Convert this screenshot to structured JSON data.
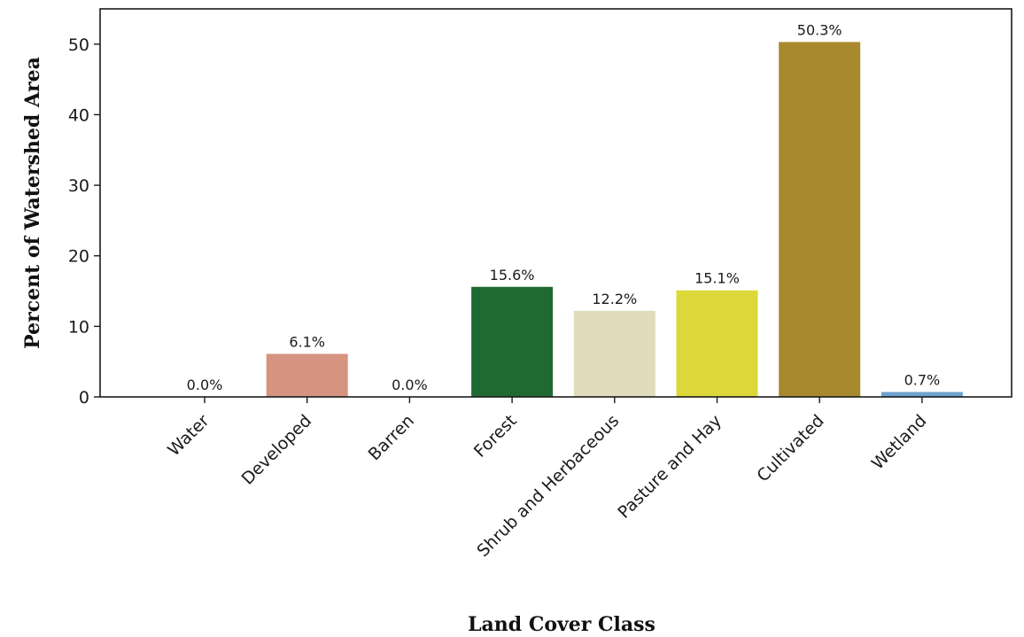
{
  "chart_data": {
    "type": "bar",
    "categories": [
      "Water",
      "Developed",
      "Barren",
      "Forest",
      "Shrub and Herbaceous",
      "Pasture and Hay",
      "Cultivated",
      "Wetland"
    ],
    "values": [
      0.0,
      6.1,
      0.0,
      15.6,
      12.2,
      15.1,
      50.3,
      0.7
    ],
    "data_labels": [
      "0.0%",
      "6.1%",
      "0.0%",
      "15.6%",
      "12.2%",
      "15.1%",
      "50.3%",
      "0.7%"
    ],
    "colors": [
      "#4f7fb8",
      "#d69480",
      "#b2ada3",
      "#1f6a32",
      "#e0dcbc",
      "#dcd83a",
      "#a88a2e",
      "#6fa3cf"
    ],
    "xlabel": "Land Cover Class",
    "ylabel": "Percent of Watershed Area",
    "yticks": [
      0,
      10,
      20,
      30,
      40,
      50
    ],
    "ylim": [
      0,
      55
    ],
    "grid": false,
    "legend": "none"
  }
}
